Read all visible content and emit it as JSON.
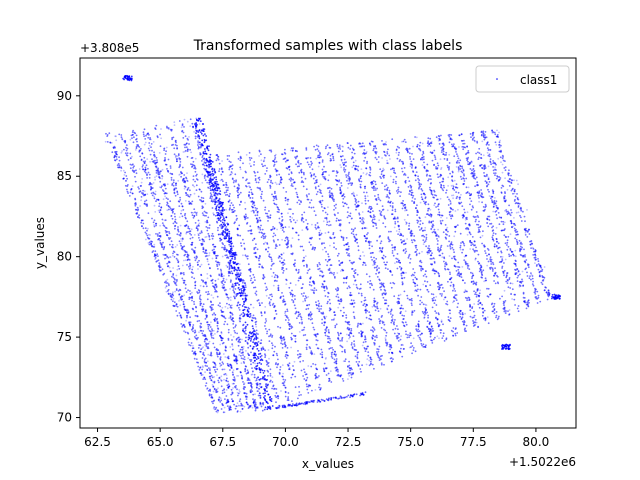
{
  "chart_data": {
    "type": "scatter",
    "title": "Transformed samples with class labels",
    "xlabel": "x_values",
    "ylabel": "y_values",
    "x_offset_label": "+1.5022e6",
    "y_offset_label": "+3.808e5",
    "xlim": [
      61.8,
      81.6
    ],
    "ylim": [
      69.35,
      92.35
    ],
    "x_ticks": [
      62.5,
      65.0,
      67.5,
      70.0,
      72.5,
      75.0,
      77.5,
      80.0
    ],
    "x_tick_labels": [
      "62.5",
      "65.0",
      "67.5",
      "70.0",
      "72.5",
      "75.0",
      "77.5",
      "80.0"
    ],
    "y_ticks": [
      70,
      75,
      80,
      85,
      90
    ],
    "y_tick_labels": [
      "70",
      "75",
      "80",
      "85",
      "90"
    ],
    "grid": false,
    "legend_position": "upper right",
    "series": [
      {
        "name": "class1",
        "color": "#0000ff",
        "marker": "point"
      }
    ],
    "regions": {
      "left_wing": {
        "corners": [
          [
            62.7,
            87.6
          ],
          [
            66.6,
            88.7
          ],
          [
            69.3,
            70.4
          ],
          [
            67.2,
            70.3
          ]
        ]
      },
      "right_wing": {
        "corners": [
          [
            66.6,
            86.3
          ],
          [
            78.6,
            87.9
          ],
          [
            80.8,
            77.5
          ],
          [
            69.6,
            70.6
          ]
        ]
      },
      "left_stripe_count": 8,
      "right_stripe_count": 27,
      "thick_edge_line": [
        [
          66.5,
          88.6
        ],
        [
          69.4,
          70.5
        ]
      ],
      "bottom_edge": [
        [
          69.6,
          70.6
        ],
        [
          73.2,
          71.5
        ]
      ],
      "corner_clusters": [
        [
          63.7,
          91.1
        ],
        [
          78.8,
          74.4
        ],
        [
          80.8,
          77.5
        ]
      ]
    }
  }
}
